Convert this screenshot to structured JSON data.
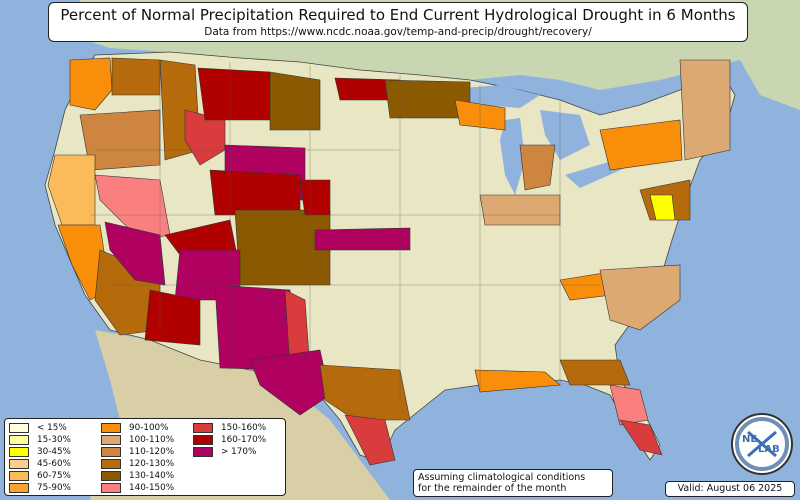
{
  "title": "Percent of Normal Precipitation Required to End Current Hydrological Drought in 6 Months",
  "subtitle": "Data from https://www.ncdc.noaa.gov/temp-and-precip/drought/recovery/",
  "note_line1": "Assuming climatological conditions",
  "note_line2": "for the remainder of the month",
  "valid": "Valid: August 06 2025",
  "logo_text_a": "NE",
  "logo_text_b": "LAB",
  "colors": {
    "ocean": "#8fb3dd",
    "land": "#e9e6c4",
    "foreign_land": "#c9d6b2",
    "lakes": "#8fb3dd"
  },
  "legend": [
    {
      "label": "< 15%",
      "color": "#ffffe0"
    },
    {
      "label": "15-30%",
      "color": "#ffffa0"
    },
    {
      "label": "30-45%",
      "color": "#ffff00"
    },
    {
      "label": "45-60%",
      "color": "#f9cf91"
    },
    {
      "label": "60-75%",
      "color": "#fbbb5a"
    },
    {
      "label": "75-90%",
      "color": "#f9a431"
    },
    {
      "label": "90-100%",
      "color": "#f88e0a"
    },
    {
      "label": "100-110%",
      "color": "#dda972"
    },
    {
      "label": "110-120%",
      "color": "#cd853f"
    },
    {
      "label": "120-130%",
      "color": "#b56b0c"
    },
    {
      "label": "130-140%",
      "color": "#8b5a00"
    },
    {
      "label": "140-150%",
      "color": "#fa8080"
    },
    {
      "label": "150-160%",
      "color": "#d83c3c"
    },
    {
      "label": "160-170%",
      "color": "#b00000"
    },
    {
      "label": "> 170%",
      "color": "#b00060"
    }
  ],
  "regions": [
    {
      "name": "wa-west",
      "color": "#f88e0a"
    },
    {
      "name": "wa-east",
      "color": "#b56b0c"
    },
    {
      "name": "or-west",
      "color": "#fbbb5a"
    },
    {
      "name": "or-east",
      "color": "#cd853f"
    },
    {
      "name": "ca-coast",
      "color": "#f88e0a"
    },
    {
      "name": "ca-south",
      "color": "#b56b0c"
    },
    {
      "name": "nv-west",
      "color": "#fa8080"
    },
    {
      "name": "nv-south",
      "color": "#b00060"
    },
    {
      "name": "id-north",
      "color": "#b56b0c"
    },
    {
      "name": "id-south",
      "color": "#d83c3c"
    },
    {
      "name": "mt-north",
      "color": "#b00000"
    },
    {
      "name": "mt-east",
      "color": "#8b5a00"
    },
    {
      "name": "wy",
      "color": "#b00060"
    },
    {
      "name": "wy-south",
      "color": "#b00000"
    },
    {
      "name": "ut",
      "color": "#b00000"
    },
    {
      "name": "co",
      "color": "#8b5a00"
    },
    {
      "name": "az-north",
      "color": "#b00060"
    },
    {
      "name": "az-south",
      "color": "#b00000"
    },
    {
      "name": "nm",
      "color": "#b00060"
    },
    {
      "name": "nm-east",
      "color": "#d83c3c"
    },
    {
      "name": "tx-west",
      "color": "#b00060"
    },
    {
      "name": "tx-central",
      "color": "#b56b0c"
    },
    {
      "name": "tx-south",
      "color": "#d83c3c"
    },
    {
      "name": "ks-north",
      "color": "#b00060"
    },
    {
      "name": "ne-west",
      "color": "#b00000"
    },
    {
      "name": "nd-north",
      "color": "#b00000"
    },
    {
      "name": "mn-north",
      "color": "#8b5a00"
    },
    {
      "name": "wi-north",
      "color": "#f88e0a"
    },
    {
      "name": "la-coast",
      "color": "#f88e0a"
    },
    {
      "name": "fl-central",
      "color": "#fa8080"
    },
    {
      "name": "fl-south",
      "color": "#d83c3c"
    },
    {
      "name": "ga-south",
      "color": "#b56b0c"
    },
    {
      "name": "tn-east",
      "color": "#f88e0a"
    },
    {
      "name": "carolinas",
      "color": "#dda972"
    },
    {
      "name": "mid-atlantic",
      "color": "#b56b0c"
    },
    {
      "name": "md-de",
      "color": "#ffff00"
    },
    {
      "name": "pa-ny",
      "color": "#f88e0a"
    },
    {
      "name": "new-england",
      "color": "#dda972"
    },
    {
      "name": "mi-lower",
      "color": "#cd853f"
    },
    {
      "name": "in-oh",
      "color": "#dda972"
    }
  ]
}
